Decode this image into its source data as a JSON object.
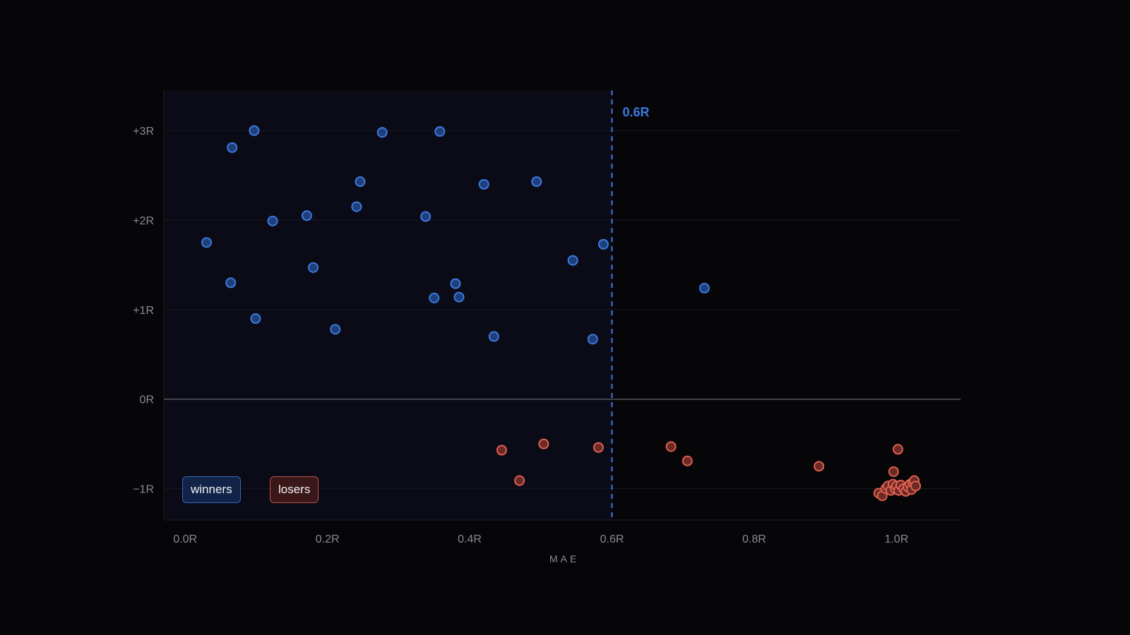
{
  "colors": {
    "background": "#060508",
    "plot_bg_region": "#0b0b17",
    "winner": "#3b7ae0",
    "winner_fill": "#1f3f7a",
    "loser": "#e0604f",
    "loser_fill": "#6b2a26",
    "threshold": "#3b7ae0",
    "zero_line": "#5a5a62",
    "grid": "#1a1a22",
    "tick_text": "#8a8a93"
  },
  "legend": {
    "winners": "winners",
    "losers": "losers"
  },
  "chart_data": {
    "type": "scatter",
    "xlabel": "MAE",
    "ylabel": "",
    "xlim": [
      -0.03,
      1.09
    ],
    "ylim": [
      -1.35,
      3.45
    ],
    "x_ticks": [
      {
        "value": 0.0,
        "label": "0.0R"
      },
      {
        "value": 0.2,
        "label": "0.2R"
      },
      {
        "value": 0.4,
        "label": "0.4R"
      },
      {
        "value": 0.6,
        "label": "0.6R"
      },
      {
        "value": 0.8,
        "label": "0.8R"
      },
      {
        "value": 1.0,
        "label": "1.0R"
      }
    ],
    "y_ticks": [
      {
        "value": 3,
        "label": "+3R"
      },
      {
        "value": 2,
        "label": "+2R"
      },
      {
        "value": 1,
        "label": "+1R"
      },
      {
        "value": 0,
        "label": "0R"
      },
      {
        "value": -1,
        "label": "−1R"
      }
    ],
    "grid": true,
    "legend_position": "bottom-left",
    "threshold": {
      "x": 0.6,
      "label": "0.6R"
    },
    "series": [
      {
        "name": "winners",
        "points": [
          [
            0.03,
            1.75
          ],
          [
            0.066,
            2.81
          ],
          [
            0.097,
            3.0
          ],
          [
            0.064,
            1.3
          ],
          [
            0.099,
            0.9
          ],
          [
            0.123,
            1.99
          ],
          [
            0.171,
            2.05
          ],
          [
            0.18,
            1.47
          ],
          [
            0.211,
            0.78
          ],
          [
            0.241,
            2.15
          ],
          [
            0.246,
            2.43
          ],
          [
            0.277,
            2.98
          ],
          [
            0.338,
            2.04
          ],
          [
            0.35,
            1.13
          ],
          [
            0.358,
            2.99
          ],
          [
            0.38,
            1.29
          ],
          [
            0.385,
            1.14
          ],
          [
            0.42,
            2.4
          ],
          [
            0.434,
            0.7
          ],
          [
            0.494,
            2.43
          ],
          [
            0.545,
            1.55
          ],
          [
            0.573,
            0.67
          ],
          [
            0.588,
            1.73
          ],
          [
            0.73,
            1.24
          ]
        ]
      },
      {
        "name": "losers",
        "points": [
          [
            0.445,
            -0.57
          ],
          [
            0.47,
            -0.91
          ],
          [
            0.504,
            -0.5
          ],
          [
            0.581,
            -0.54
          ],
          [
            0.683,
            -0.53
          ],
          [
            0.706,
            -0.69
          ],
          [
            0.891,
            -0.75
          ],
          [
            1.002,
            -0.56
          ],
          [
            0.996,
            -0.81
          ],
          [
            0.975,
            -1.05
          ],
          [
            0.98,
            -1.08
          ],
          [
            0.985,
            -1.0
          ],
          [
            0.988,
            -0.97
          ],
          [
            0.992,
            -1.02
          ],
          [
            0.995,
            -0.95
          ],
          [
            0.998,
            -1.0
          ],
          [
            1.0,
            -0.97
          ],
          [
            1.003,
            -1.02
          ],
          [
            1.006,
            -0.96
          ],
          [
            1.01,
            -1.0
          ],
          [
            1.013,
            -1.03
          ],
          [
            1.016,
            -0.98
          ],
          [
            1.019,
            -0.95
          ],
          [
            1.021,
            -1.01
          ],
          [
            1.023,
            -0.93
          ],
          [
            1.025,
            -0.91
          ],
          [
            1.027,
            -0.97
          ]
        ]
      }
    ]
  }
}
